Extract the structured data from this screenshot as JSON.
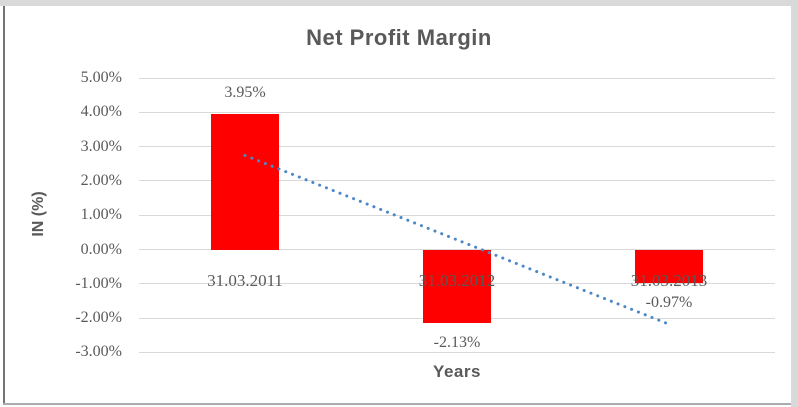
{
  "chart_data": {
    "type": "bar",
    "title": "Net Profit Margin",
    "xlabel": "Years",
    "ylabel": "IN (%)",
    "categories": [
      "31.03.2011",
      "31.03.2012",
      "31.03.2013"
    ],
    "values": [
      3.95,
      -2.13,
      -0.97
    ],
    "data_labels": [
      "3.95%",
      "-2.13%",
      "-0.97%"
    ],
    "ylim": [
      -3,
      5
    ],
    "ytick_step": 1,
    "ytick_labels": [
      "5.00%",
      "4.00%",
      "3.00%",
      "2.00%",
      "1.00%",
      "0.00%",
      "-1.00%",
      "-2.00%",
      "-3.00%"
    ],
    "legend": "none",
    "grid": true,
    "trendline": {
      "type": "linear",
      "style": "dotted"
    }
  },
  "colors": {
    "bar": "#FF0000",
    "trendline": "#4C87C8",
    "gridline": "#D9D9D9",
    "text": "#595959",
    "frame_light": "#D9D9D9",
    "frame_dark": "#737373",
    "frame_bottom": "#ACACAC",
    "background": "#FFFFFF"
  }
}
